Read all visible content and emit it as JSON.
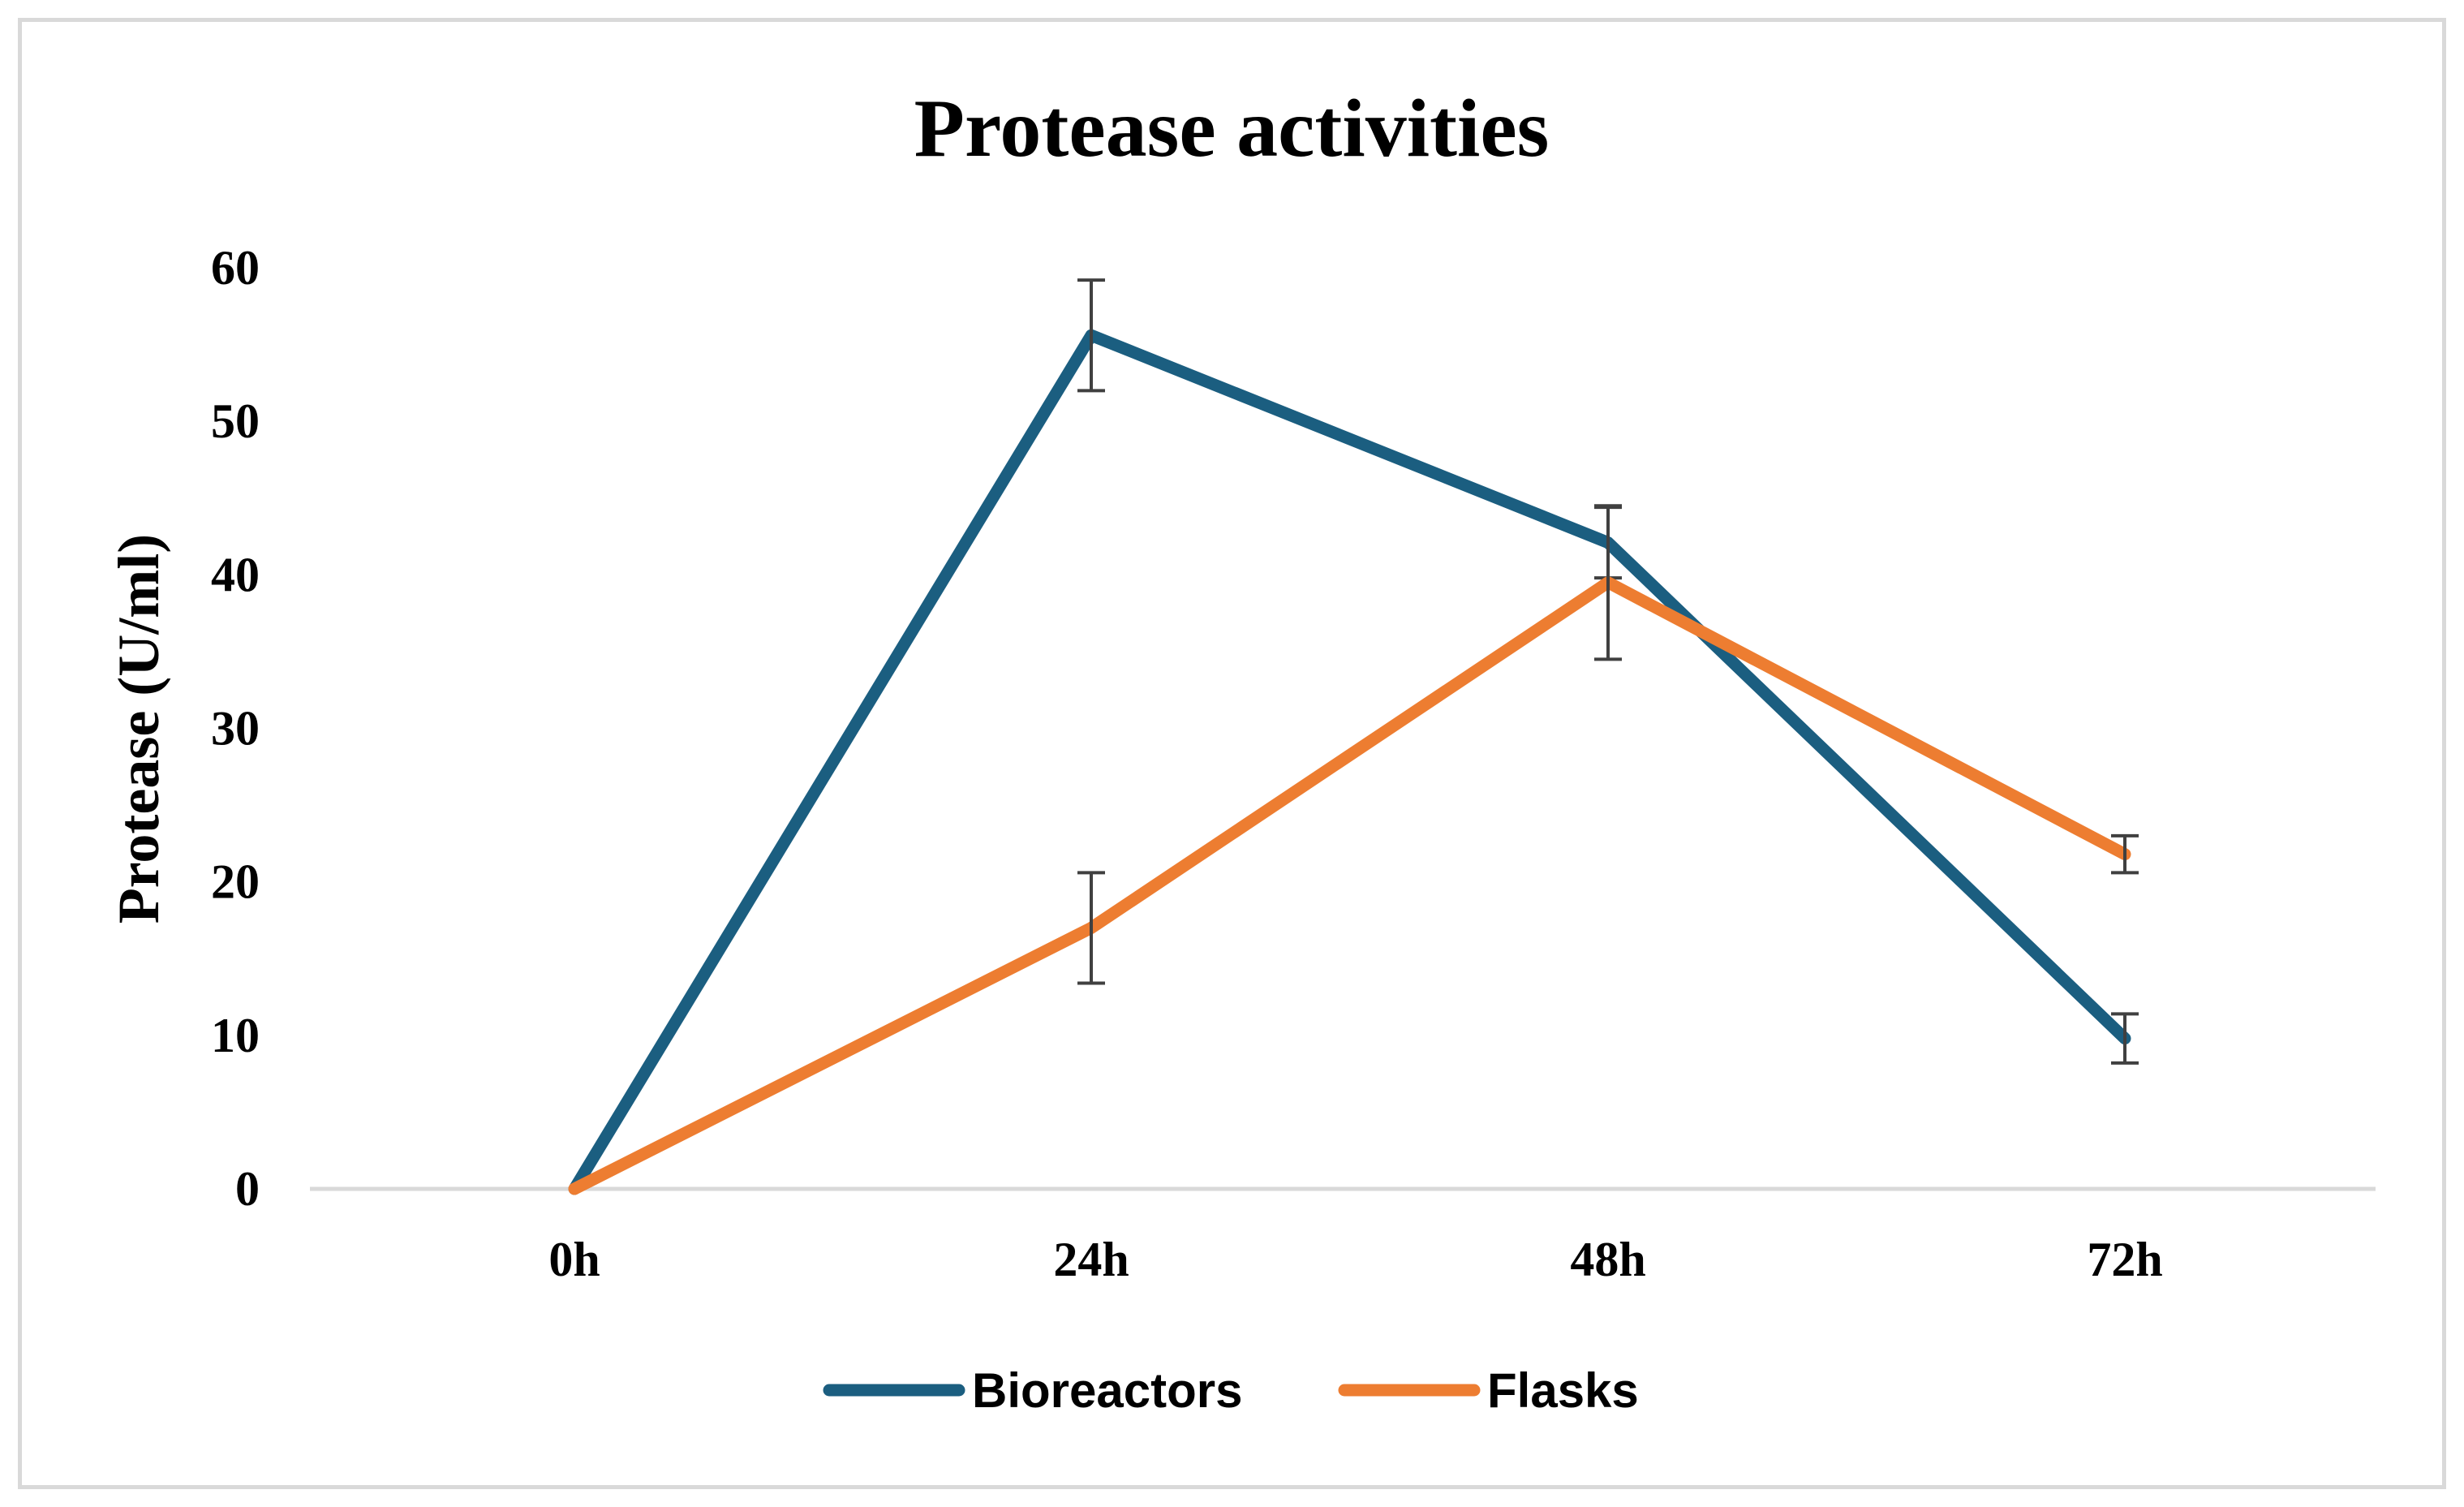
{
  "chart_data": {
    "type": "line",
    "title": "Protease activities",
    "xlabel": "",
    "ylabel": "Protease (U/ml)",
    "categories": [
      "0h",
      "24h",
      "48h",
      "72h"
    ],
    "ylim": [
      0,
      60
    ],
    "yticks": [
      0,
      10,
      20,
      30,
      40,
      50,
      60
    ],
    "grid": false,
    "legend_position": "bottom",
    "series": [
      {
        "name": "Bioreactors",
        "color": "#1b5e80",
        "values": [
          0,
          55.6,
          42.1,
          9.8
        ],
        "errors": [
          0,
          3.6,
          2.3,
          1.6
        ]
      },
      {
        "name": "Flasks",
        "color": "#ed7d31",
        "values": [
          0,
          17.0,
          39.5,
          21.8
        ],
        "errors": [
          0,
          3.6,
          5.0,
          1.2
        ]
      }
    ]
  }
}
